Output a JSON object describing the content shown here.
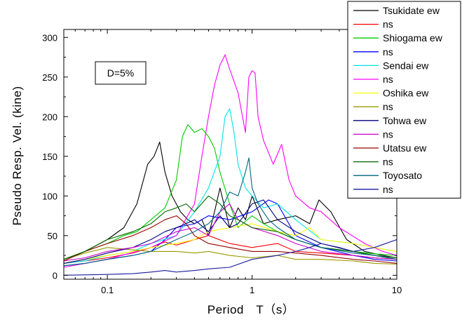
{
  "chart_data": {
    "type": "line",
    "title": "",
    "xlabel": "Period　T（s）",
    "ylabel": "Pseudo Resp. Vel. (kine)",
    "x_scale": "log",
    "xlim": [
      0.05,
      10
    ],
    "ylim": [
      -5,
      310
    ],
    "x_ticks": [
      0.1,
      1,
      10
    ],
    "x_tick_labels": [
      "0.1",
      "1",
      "10"
    ],
    "y_ticks": [
      0,
      50,
      100,
      150,
      200,
      250,
      300
    ],
    "y_tick_labels": [
      "0",
      "50",
      "100",
      "150",
      "200",
      "250",
      "300"
    ],
    "grid": false,
    "legend_position": "top-right",
    "annotation": "D=5%",
    "series": [
      {
        "name": "Tsukidate ew",
        "color": "#000000",
        "x": [
          0.05,
          0.07,
          0.1,
          0.13,
          0.16,
          0.19,
          0.21,
          0.23,
          0.25,
          0.28,
          0.32,
          0.36,
          0.4,
          0.45,
          0.5,
          0.55,
          0.6,
          0.7,
          0.8,
          0.9,
          1,
          1.2,
          1.5,
          2,
          2.5,
          2.9,
          3.5,
          4.5,
          6,
          8,
          10
        ],
        "y": [
          20,
          30,
          45,
          60,
          90,
          140,
          150,
          168,
          130,
          100,
          80,
          70,
          65,
          70,
          50,
          80,
          110,
          60,
          85,
          70,
          100,
          65,
          70,
          75,
          65,
          95,
          80,
          45,
          30,
          25,
          22
        ]
      },
      {
        "name": "ns",
        "color": "#ff0000",
        "x": [
          0.05,
          0.07,
          0.1,
          0.15,
          0.2,
          0.25,
          0.3,
          0.4,
          0.5,
          0.7,
          1,
          1.5,
          2,
          3,
          5,
          7,
          10
        ],
        "y": [
          15,
          18,
          22,
          28,
          35,
          42,
          38,
          45,
          50,
          40,
          35,
          40,
          30,
          28,
          25,
          22,
          20
        ]
      },
      {
        "name": "Shiogama ew",
        "color": "#00cc00",
        "x": [
          0.05,
          0.07,
          0.1,
          0.13,
          0.16,
          0.2,
          0.25,
          0.3,
          0.33,
          0.36,
          0.4,
          0.45,
          0.5,
          0.55,
          0.6,
          0.7,
          0.8,
          1,
          1.2,
          1.5,
          2,
          3,
          5,
          7,
          10
        ],
        "y": [
          20,
          30,
          40,
          50,
          55,
          70,
          85,
          120,
          175,
          190,
          180,
          185,
          175,
          160,
          130,
          90,
          60,
          75,
          65,
          55,
          45,
          35,
          30,
          27,
          25
        ]
      },
      {
        "name": "ns",
        "color": "#0000ff",
        "x": [
          0.05,
          0.07,
          0.1,
          0.15,
          0.2,
          0.25,
          0.3,
          0.4,
          0.5,
          0.7,
          1,
          1.3,
          1.5,
          2,
          3,
          5,
          7,
          10
        ],
        "y": [
          12,
          15,
          20,
          25,
          30,
          45,
          60,
          65,
          75,
          70,
          80,
          95,
          90,
          50,
          35,
          25,
          20,
          18
        ]
      },
      {
        "name": "Sendai ew",
        "color": "#00e5e5",
        "x": [
          0.05,
          0.07,
          0.1,
          0.15,
          0.2,
          0.3,
          0.4,
          0.5,
          0.6,
          0.65,
          0.7,
          0.75,
          0.8,
          0.9,
          1,
          1.2,
          1.5,
          2,
          3,
          5,
          7,
          10
        ],
        "y": [
          15,
          18,
          25,
          30,
          40,
          50,
          80,
          110,
          150,
          200,
          210,
          180,
          140,
          110,
          100,
          85,
          90,
          70,
          45,
          40,
          35,
          30
        ]
      },
      {
        "name": "ns",
        "color": "#ff00ff",
        "x": [
          0.05,
          0.1,
          0.2,
          0.3,
          0.4,
          0.45,
          0.5,
          0.55,
          0.6,
          0.65,
          0.7,
          0.8,
          0.9,
          0.95,
          1,
          1.05,
          1.1,
          1.2,
          1.4,
          1.6,
          1.8,
          2,
          2.5,
          3,
          4,
          6,
          8,
          10
        ],
        "y": [
          10,
          20,
          35,
          50,
          90,
          150,
          200,
          240,
          265,
          278,
          260,
          230,
          180,
          250,
          258,
          255,
          200,
          170,
          140,
          165,
          120,
          100,
          85,
          80,
          60,
          40,
          30,
          25
        ]
      },
      {
        "name": "Oshika ew",
        "color": "#ffff00",
        "x": [
          0.05,
          0.07,
          0.1,
          0.15,
          0.2,
          0.3,
          0.4,
          0.5,
          0.7,
          1,
          1.5,
          2,
          2.5,
          3,
          5,
          7,
          10
        ],
        "y": [
          15,
          20,
          25,
          30,
          35,
          40,
          45,
          55,
          60,
          65,
          55,
          50,
          60,
          45,
          40,
          35,
          30
        ]
      },
      {
        "name": "ns",
        "color": "#999900",
        "x": [
          0.05,
          0.07,
          0.1,
          0.15,
          0.2,
          0.3,
          0.4,
          0.5,
          0.7,
          1,
          1.5,
          2,
          3,
          5,
          7,
          10
        ],
        "y": [
          20,
          28,
          35,
          32,
          30,
          30,
          28,
          30,
          25,
          22,
          25,
          20,
          20,
          18,
          15,
          14
        ]
      },
      {
        "name": "Tohwa ew",
        "color": "#000080",
        "x": [
          0.05,
          0.07,
          0.1,
          0.15,
          0.2,
          0.25,
          0.3,
          0.35,
          0.4,
          0.5,
          0.6,
          0.7,
          0.8,
          1,
          1.2,
          1.5,
          2,
          3,
          5,
          7,
          10
        ],
        "y": [
          15,
          20,
          28,
          35,
          45,
          55,
          60,
          65,
          70,
          55,
          75,
          60,
          65,
          90,
          95,
          70,
          55,
          40,
          30,
          25,
          20
        ]
      },
      {
        "name": "ns",
        "color": "#cc00cc",
        "x": [
          0.05,
          0.07,
          0.1,
          0.15,
          0.2,
          0.3,
          0.4,
          0.5,
          0.6,
          0.7,
          0.8,
          1,
          1.5,
          2,
          3,
          5,
          7,
          10
        ],
        "y": [
          18,
          22,
          30,
          35,
          40,
          55,
          60,
          50,
          80,
          90,
          70,
          60,
          50,
          40,
          30,
          25,
          22,
          20
        ]
      },
      {
        "name": "Utatsu ew",
        "color": "#990000",
        "x": [
          0.05,
          0.07,
          0.1,
          0.15,
          0.2,
          0.25,
          0.3,
          0.35,
          0.4,
          0.5,
          0.7,
          1,
          1.5,
          2,
          3,
          5,
          7,
          10
        ],
        "y": [
          18,
          30,
          40,
          50,
          60,
          70,
          75,
          65,
          50,
          40,
          35,
          30,
          30,
          28,
          25,
          20,
          18,
          15
        ]
      },
      {
        "name": "ns",
        "color": "#006600",
        "x": [
          0.05,
          0.07,
          0.1,
          0.15,
          0.2,
          0.25,
          0.3,
          0.35,
          0.4,
          0.5,
          0.6,
          0.7,
          0.8,
          1,
          1.5,
          2,
          3,
          5,
          7,
          10
        ],
        "y": [
          20,
          30,
          45,
          55,
          65,
          80,
          85,
          90,
          80,
          100,
          90,
          75,
          70,
          60,
          55,
          45,
          35,
          30,
          25,
          22
        ]
      },
      {
        "name": "Toyosato",
        "color": "#006680",
        "x": [
          0.05,
          0.07,
          0.1,
          0.15,
          0.2,
          0.3,
          0.4,
          0.5,
          0.6,
          0.7,
          0.8,
          0.9,
          0.95,
          1,
          1.1,
          1.3,
          1.5,
          2,
          3,
          5,
          7,
          10
        ],
        "y": [
          12,
          15,
          20,
          25,
          30,
          45,
          55,
          65,
          80,
          105,
          100,
          130,
          148,
          110,
          90,
          70,
          60,
          45,
          35,
          28,
          25,
          20
        ]
      },
      {
        "name": "ns",
        "color": "#1a1aa0",
        "x": [
          0.05,
          0.1,
          0.15,
          0.2,
          0.25,
          0.3,
          0.4,
          0.5,
          0.7,
          1,
          1.5,
          2,
          2.5,
          3,
          4,
          5,
          7,
          10
        ],
        "y": [
          0,
          1,
          2,
          4,
          6,
          4,
          6,
          8,
          10,
          20,
          25,
          30,
          35,
          40,
          35,
          30,
          35,
          45
        ]
      }
    ]
  }
}
